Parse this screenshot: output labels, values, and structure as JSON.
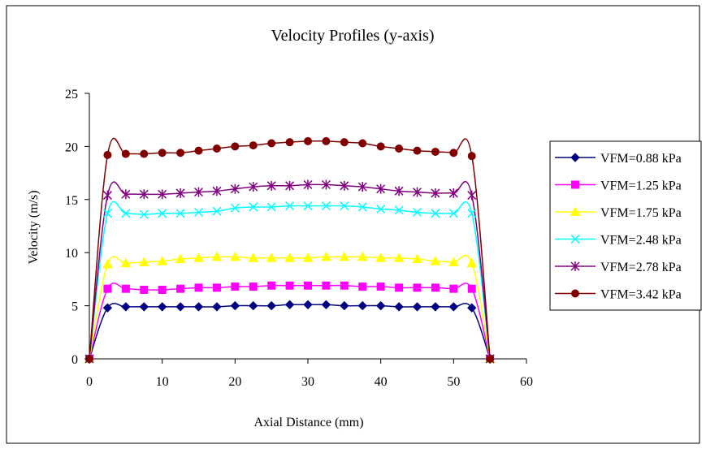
{
  "chart_data": {
    "type": "line",
    "title": "Velocity Profiles (y-axis)",
    "xlabel": "Axial Distance (mm)",
    "ylabel": "Velocity (m/s)",
    "xlim": [
      0,
      60
    ],
    "ylim": [
      0,
      25
    ],
    "xticks": [
      0,
      10,
      20,
      30,
      40,
      50,
      60
    ],
    "yticks": [
      0,
      5,
      10,
      15,
      20,
      25
    ],
    "grid": false,
    "legend_position": "right",
    "x": [
      0,
      2.5,
      5,
      7.5,
      10,
      12.5,
      15,
      17.5,
      20,
      22.5,
      25,
      27.5,
      30,
      32.5,
      35,
      37.5,
      40,
      42.5,
      45,
      47.5,
      50,
      52.5,
      55
    ],
    "series": [
      {
        "name": "VFM=0.88 kPa",
        "color": "#000080",
        "marker": "diamond",
        "values": [
          0,
          4.8,
          4.9,
          4.9,
          4.9,
          4.9,
          4.9,
          4.9,
          5.0,
          5.0,
          5.0,
          5.1,
          5.1,
          5.1,
          5.0,
          5.0,
          5.0,
          4.9,
          4.9,
          4.9,
          4.9,
          4.8,
          0
        ]
      },
      {
        "name": "VFM=1.25 kPa",
        "color": "#ff00ff",
        "marker": "square",
        "values": [
          0,
          6.6,
          6.6,
          6.5,
          6.5,
          6.6,
          6.7,
          6.7,
          6.8,
          6.8,
          6.9,
          6.9,
          6.9,
          6.9,
          6.9,
          6.8,
          6.8,
          6.7,
          6.7,
          6.7,
          6.6,
          6.6,
          0
        ]
      },
      {
        "name": "VFM=1.75 kPa",
        "color": "#ffff00",
        "marker": "triangle",
        "values": [
          0,
          8.9,
          9.0,
          9.1,
          9.2,
          9.4,
          9.5,
          9.6,
          9.6,
          9.5,
          9.5,
          9.5,
          9.5,
          9.6,
          9.6,
          9.6,
          9.5,
          9.5,
          9.4,
          9.2,
          9.1,
          9.0,
          0
        ]
      },
      {
        "name": "VFM=2.48 kPa",
        "color": "#00ffff",
        "marker": "x",
        "values": [
          0,
          13.7,
          13.7,
          13.6,
          13.7,
          13.7,
          13.8,
          13.9,
          14.2,
          14.3,
          14.3,
          14.4,
          14.4,
          14.4,
          14.4,
          14.3,
          14.1,
          14.0,
          13.8,
          13.7,
          13.7,
          13.7,
          0
        ]
      },
      {
        "name": "VFM=2.78 kPa",
        "color": "#800080",
        "marker": "star",
        "values": [
          0,
          15.4,
          15.5,
          15.5,
          15.5,
          15.6,
          15.7,
          15.8,
          16.0,
          16.2,
          16.3,
          16.3,
          16.4,
          16.4,
          16.3,
          16.2,
          16.0,
          15.8,
          15.7,
          15.6,
          15.6,
          15.4,
          0
        ]
      },
      {
        "name": "VFM=3.42 kPa",
        "color": "#800000",
        "marker": "circle",
        "values": [
          0,
          19.2,
          19.3,
          19.3,
          19.4,
          19.4,
          19.6,
          19.8,
          20.0,
          20.1,
          20.3,
          20.4,
          20.5,
          20.5,
          20.4,
          20.3,
          20.0,
          19.8,
          19.6,
          19.5,
          19.4,
          19.1,
          0
        ]
      }
    ]
  }
}
